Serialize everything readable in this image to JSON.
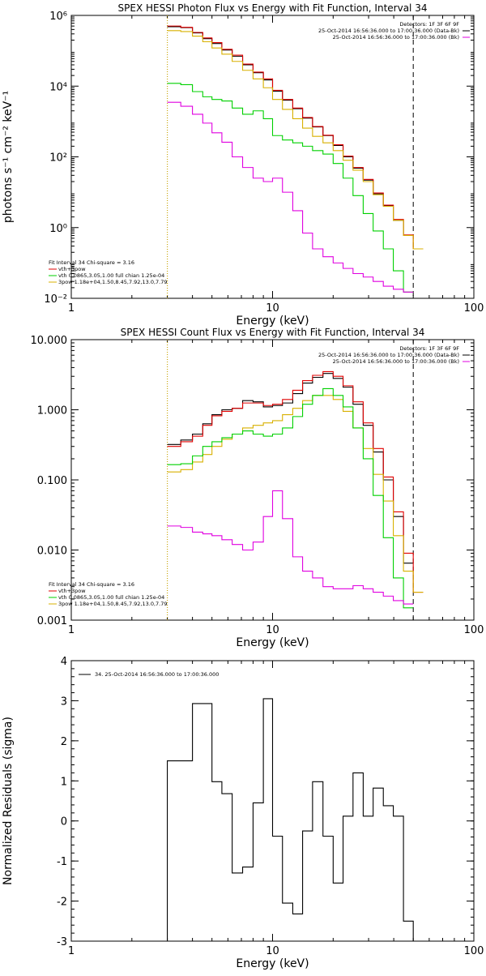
{
  "chart_data": [
    {
      "type": "line",
      "title": "SPEX HESSI Photon Flux vs Energy with Fit Function, Interval 34",
      "xlabel": "Energy (keV)",
      "ylabel": "photons s⁻¹ cm⁻² keV⁻¹",
      "xscale": "log",
      "yscale": "log",
      "xlim": [
        1,
        100
      ],
      "ylim": [
        0.01,
        1000000
      ],
      "xticks": [
        {
          "v": 1,
          "label": "1"
        },
        {
          "v": 10,
          "label": "10"
        },
        {
          "v": 100,
          "label": "100"
        }
      ],
      "yticks": [
        {
          "v": 0.01,
          "label": "10⁻²"
        },
        {
          "v": 1,
          "label": "10⁰"
        },
        {
          "v": 100,
          "label": "10²"
        },
        {
          "v": 10000,
          "label": "10⁴"
        },
        {
          "v": 1000000,
          "label": "10⁶"
        }
      ],
      "vlines": [
        {
          "x": 3,
          "color": "#000000",
          "style": "dotted"
        },
        {
          "x": 3,
          "color": "#d8b000",
          "style": "dotted"
        },
        {
          "x": 50,
          "color": "#000000",
          "style": "dashed"
        }
      ],
      "legend_top": {
        "position": "top-right",
        "entries": [
          {
            "text": "Detectors: 1F 3F 6F 9F",
            "color": ""
          },
          {
            "text": "25-Oct-2014 16:56:36.000 to 17:00:36.000 (Data-Bk)",
            "color": "#000000"
          },
          {
            "text": "25-Oct-2014 16:56:36.000 to 17:00:36.000 (Bk)",
            "color": "#e000e0"
          }
        ]
      },
      "legend_bottom": {
        "position": "bottom-left",
        "entries": [
          {
            "text": "Fit Interval 34   Chi-square = 3.16",
            "color": ""
          },
          {
            "text": "vth+3pow",
            "color": "#e00000"
          },
          {
            "text": "vth 0.0865,3.05,1.00  full chian 1.25e-04",
            "color": "#00d000"
          },
          {
            "text": "3pow 1.18e+04,1.50,8.45,7.92,13.0,7.79",
            "color": "#d8b000"
          }
        ]
      },
      "series": [
        {
          "color": "#000000",
          "edges": [
            3,
            3.5,
            4,
            4.5,
            5,
            5.6,
            6.3,
            7.1,
            8,
            9,
            10,
            11.2,
            12.6,
            14.1,
            15.8,
            17.8,
            20,
            22.4,
            25.1,
            28.2,
            31.6,
            35.5,
            39.8,
            44.7,
            50
          ],
          "values": [
            480000,
            450000,
            320000,
            220000,
            160000,
            105000,
            70000,
            40000,
            24000,
            15000,
            7200,
            4000,
            2300,
            1250,
            700,
            400,
            210,
            100,
            48,
            22,
            9,
            4.2,
            1.6,
            0.6
          ]
        },
        {
          "color": "#e00000",
          "edges": [
            3,
            3.5,
            4,
            4.5,
            5,
            5.6,
            6.3,
            7.1,
            8,
            9,
            10,
            11.2,
            12.6,
            14.1,
            15.8,
            17.8,
            20,
            22.4,
            25.1,
            28.2,
            31.6,
            35.5,
            39.8,
            44.7,
            50,
            56
          ],
          "values": [
            500000,
            460000,
            330000,
            230000,
            170000,
            110000,
            75000,
            42000,
            25000,
            16000,
            7600,
            4200,
            2400,
            1300,
            720,
            410,
            220,
            105,
            50,
            23,
            9.5,
            4.3,
            1.7,
            0.62,
            0.25
          ]
        },
        {
          "color": "#d8b000",
          "edges": [
            3,
            3.5,
            4,
            4.5,
            5,
            5.6,
            6.3,
            7.1,
            8,
            9,
            10,
            11.2,
            12.6,
            14.1,
            15.8,
            17.8,
            20,
            22.4,
            25.1,
            28.2,
            31.6,
            35.5,
            39.8,
            44.7,
            50,
            56
          ],
          "values": [
            370000,
            350000,
            260000,
            180000,
            120000,
            80000,
            50000,
            28000,
            16000,
            9000,
            4200,
            2200,
            1200,
            650,
            380,
            250,
            150,
            80,
            42,
            20,
            8.5,
            4,
            1.6,
            0.6,
            0.25
          ]
        },
        {
          "color": "#00d000",
          "edges": [
            3,
            3.5,
            4,
            4.5,
            5,
            5.6,
            6.3,
            7.1,
            8,
            9,
            10,
            11.2,
            12.6,
            14.1,
            15.8,
            17.8,
            20,
            22.4,
            25.1,
            28.2,
            31.6,
            35.5,
            39.8,
            44.7,
            50
          ],
          "values": [
            12000,
            11000,
            7000,
            5000,
            4200,
            3800,
            2400,
            1600,
            2000,
            1200,
            400,
            300,
            250,
            200,
            150,
            120,
            65,
            25,
            8,
            2.5,
            0.8,
            0.25,
            0.06,
            0.015
          ]
        },
        {
          "color": "#e000e0",
          "edges": [
            3,
            3.5,
            4,
            4.5,
            5,
            5.6,
            6.3,
            7.1,
            8,
            9,
            10,
            11.2,
            12.6,
            14.1,
            15.8,
            17.8,
            20,
            22.4,
            25.1,
            28.2,
            31.6,
            35.5,
            39.8,
            44.7,
            50
          ],
          "values": [
            3500,
            2700,
            1600,
            900,
            480,
            260,
            100,
            50,
            25,
            20,
            25,
            10,
            3,
            0.7,
            0.25,
            0.15,
            0.1,
            0.07,
            0.05,
            0.04,
            0.03,
            0.022,
            0.018,
            0.015
          ]
        }
      ]
    },
    {
      "type": "line",
      "title": "SPEX HESSI Count Flux vs Energy with Fit Function, Interval 34",
      "xlabel": "Energy (keV)",
      "ylabel": "",
      "xscale": "log",
      "yscale": "log",
      "xlim": [
        1,
        100
      ],
      "ylim": [
        0.001,
        10
      ],
      "xticks": [
        {
          "v": 1,
          "label": "1"
        },
        {
          "v": 10,
          "label": "10"
        },
        {
          "v": 100,
          "label": "100"
        }
      ],
      "yticks": [
        {
          "v": 0.001,
          "label": "0.001"
        },
        {
          "v": 0.01,
          "label": "0.010"
        },
        {
          "v": 0.1,
          "label": "0.100"
        },
        {
          "v": 1,
          "label": "1.000"
        },
        {
          "v": 10,
          "label": "10.000"
        }
      ],
      "vlines": [
        {
          "x": 3,
          "color": "#000000",
          "style": "dotted"
        },
        {
          "x": 3,
          "color": "#d8b000",
          "style": "dotted"
        },
        {
          "x": 50,
          "color": "#000000",
          "style": "dashed"
        }
      ],
      "legend_top": {
        "position": "top-right",
        "entries": [
          {
            "text": "Detectors: 1F 3F 6F 9F",
            "color": ""
          },
          {
            "text": "25-Oct-2014 16:56:36.000 to 17:00:36.000 (Data-Bk)",
            "color": "#000000"
          },
          {
            "text": "25-Oct-2014 16:56:36.000 to 17:00:36.000 (Bk)",
            "color": "#e000e0"
          }
        ]
      },
      "legend_bottom": {
        "position": "bottom-left",
        "entries": [
          {
            "text": "Fit Interval 34   Chi-square = 3.16",
            "color": ""
          },
          {
            "text": "vth+3pow",
            "color": "#e00000"
          },
          {
            "text": "vth 0.0865,3.05,1.00  full chian 1.25e-04",
            "color": "#00d000"
          },
          {
            "text": "3pow 1.18e+04,1.50,8.45,7.92,13.0,7.79",
            "color": "#d8b000"
          }
        ]
      },
      "series": [
        {
          "color": "#000000",
          "edges": [
            3,
            3.5,
            4,
            4.5,
            5,
            5.6,
            6.3,
            7.1,
            8,
            9,
            10,
            11.2,
            12.6,
            14.1,
            15.8,
            17.8,
            20,
            22.4,
            25.1,
            28.2,
            31.6,
            35.5,
            39.8,
            44.7,
            50
          ],
          "values": [
            0.32,
            0.37,
            0.45,
            0.63,
            0.85,
            1,
            1.05,
            1.35,
            1.3,
            1.1,
            1.15,
            1.25,
            1.7,
            2.4,
            2.9,
            3.3,
            2.8,
            2.1,
            1.2,
            0.6,
            0.25,
            0.1,
            0.03,
            0.0065
          ]
        },
        {
          "color": "#e00000",
          "edges": [
            3,
            3.5,
            4,
            4.5,
            5,
            5.6,
            6.3,
            7.1,
            8,
            9,
            10,
            11.2,
            12.6,
            14.1,
            15.8,
            17.8,
            20,
            22.4,
            25.1,
            28.2,
            31.6,
            35.5,
            39.8,
            44.7,
            50,
            56
          ],
          "values": [
            0.3,
            0.35,
            0.42,
            0.6,
            0.82,
            0.95,
            1.05,
            1.25,
            1.25,
            1.15,
            1.2,
            1.4,
            1.9,
            2.6,
            3.1,
            3.5,
            3,
            2.2,
            1.3,
            0.65,
            0.28,
            0.11,
            0.035,
            0.009,
            0.0025
          ]
        },
        {
          "color": "#d8b000",
          "edges": [
            3,
            3.5,
            4,
            4.5,
            5,
            5.6,
            6.3,
            7.1,
            8,
            9,
            10,
            11.2,
            12.6,
            14.1,
            15.8,
            17.8,
            20,
            22.4,
            25.1,
            28.2,
            31.6,
            35.5,
            39.8,
            44.7,
            50,
            56
          ],
          "values": [
            0.13,
            0.14,
            0.18,
            0.23,
            0.3,
            0.38,
            0.45,
            0.55,
            0.6,
            0.65,
            0.7,
            0.85,
            1.05,
            1.35,
            1.6,
            1.6,
            1.4,
            0.95,
            0.55,
            0.28,
            0.12,
            0.05,
            0.016,
            0.005,
            0.0025
          ]
        },
        {
          "color": "#00d000",
          "edges": [
            3,
            3.5,
            4,
            4.5,
            5,
            5.6,
            6.3,
            7.1,
            8,
            9,
            10,
            11.2,
            12.6,
            14.1,
            15.8,
            17.8,
            20,
            22.4,
            25.1,
            28.2,
            31.6,
            35.5,
            39.8,
            44.7,
            50
          ],
          "values": [
            0.165,
            0.17,
            0.22,
            0.3,
            0.35,
            0.4,
            0.45,
            0.5,
            0.45,
            0.42,
            0.45,
            0.55,
            0.8,
            1.2,
            1.6,
            2,
            1.6,
            1.1,
            0.55,
            0.2,
            0.06,
            0.015,
            0.004,
            0.0015
          ]
        },
        {
          "color": "#e000e0",
          "edges": [
            3,
            3.5,
            4,
            4.5,
            5,
            5.6,
            6.3,
            7.1,
            8,
            9,
            10,
            11.2,
            12.6,
            14.1,
            15.8,
            17.8,
            20,
            22.4,
            25.1,
            28.2,
            31.6,
            35.5,
            39.8,
            44.7,
            50
          ],
          "values": [
            0.022,
            0.021,
            0.018,
            0.017,
            0.016,
            0.014,
            0.012,
            0.01,
            0.013,
            0.03,
            0.07,
            0.028,
            0.008,
            0.005,
            0.004,
            0.003,
            0.0028,
            0.0028,
            0.0031,
            0.0028,
            0.0025,
            0.0022,
            0.0019,
            0.0017
          ]
        }
      ]
    },
    {
      "type": "line",
      "title": "",
      "xlabel": "Energy (keV)",
      "ylabel": "Normalized Residuals (sigma)",
      "xscale": "log",
      "yscale": "linear",
      "xlim": [
        1,
        100
      ],
      "ylim": [
        -3,
        4
      ],
      "xticks": [
        {
          "v": 1,
          "label": "1"
        },
        {
          "v": 10,
          "label": "10"
        },
        {
          "v": 100,
          "label": "100"
        }
      ],
      "yticks": [
        {
          "v": -3,
          "label": "-3"
        },
        {
          "v": -2,
          "label": "-2"
        },
        {
          "v": -1,
          "label": "-1"
        },
        {
          "v": 0,
          "label": "0"
        },
        {
          "v": 1,
          "label": "1"
        },
        {
          "v": 2,
          "label": "2"
        },
        {
          "v": 3,
          "label": "3"
        },
        {
          "v": 4,
          "label": "4"
        }
      ],
      "vlines": [],
      "legend_top": {
        "position": "top-left",
        "entries": [
          {
            "text": "34. 25-Oct-2014 16:56:36.000 to 17:00:36.000",
            "color": "#000000"
          }
        ]
      },
      "legend_bottom": {
        "position": "",
        "entries": []
      },
      "series": [
        {
          "color": "#000000",
          "edges": [
            3,
            4,
            5,
            5.6,
            6.3,
            7.1,
            8,
            9,
            10,
            11.2,
            12.6,
            14.1,
            15.8,
            17.8,
            20,
            22.4,
            25.1,
            28.2,
            31.6,
            35.5,
            39.8,
            44.7,
            50
          ],
          "values": [
            1.5,
            2.93,
            0.98,
            0.68,
            -1.3,
            -1.15,
            0.45,
            3.05,
            -0.38,
            -2.05,
            -2.32,
            -0.25,
            0.98,
            -0.38,
            -1.55,
            0.12,
            1.2,
            0.12,
            0.82,
            0.38,
            0.12,
            -2.5
          ],
          "start": -3.2,
          "end": -3.2
        }
      ]
    }
  ]
}
